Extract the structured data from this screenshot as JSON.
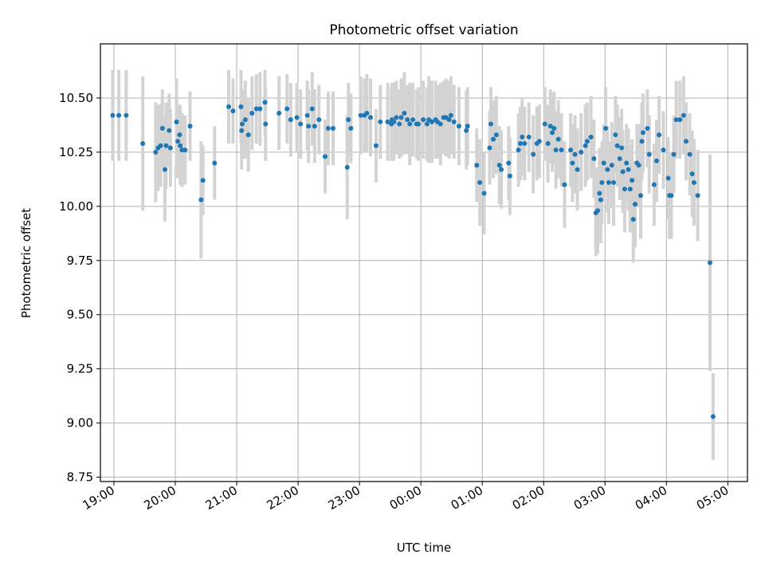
{
  "chart_data": {
    "type": "scatter",
    "title": "Photometric offset variation",
    "xlabel": "UTC time",
    "ylabel": "Photometric offset",
    "xlim": [
      -0.22,
      10.32
    ],
    "ylim": [
      8.73,
      10.75
    ],
    "grid": true,
    "x_unit": "hours since 19:00 UTC",
    "x_ticks": [
      {
        "value": 0,
        "label": "19:00"
      },
      {
        "value": 1,
        "label": "20:00"
      },
      {
        "value": 2,
        "label": "21:00"
      },
      {
        "value": 3,
        "label": "22:00"
      },
      {
        "value": 4,
        "label": "23:00"
      },
      {
        "value": 5,
        "label": "00:00"
      },
      {
        "value": 6,
        "label": "01:00"
      },
      {
        "value": 7,
        "label": "02:00"
      },
      {
        "value": 8,
        "label": "03:00"
      },
      {
        "value": 9,
        "label": "04:00"
      },
      {
        "value": 10,
        "label": "05:00"
      }
    ],
    "y_ticks": [
      {
        "value": 8.75,
        "label": "8.75"
      },
      {
        "value": 9.0,
        "label": "9.00"
      },
      {
        "value": 9.25,
        "label": "9.25"
      },
      {
        "value": 9.5,
        "label": "9.50"
      },
      {
        "value": 9.75,
        "label": "9.75"
      },
      {
        "value": 10.0,
        "label": "10.00"
      },
      {
        "value": 10.25,
        "label": "10.25"
      },
      {
        "value": 10.5,
        "label": "10.50"
      }
    ],
    "colors": {
      "point": "#1f77b4",
      "errorbar": "#d3d3d3",
      "grid": "#b0b0b0"
    },
    "series": [
      {
        "name": "offset",
        "points": [
          [
            -0.02,
            10.42,
            0.21
          ],
          [
            0.08,
            10.42,
            0.21
          ],
          [
            0.2,
            10.42,
            0.21
          ],
          [
            0.47,
            10.29,
            0.31
          ],
          [
            0.68,
            10.25,
            0.23
          ],
          [
            0.72,
            10.27,
            0.2
          ],
          [
            0.76,
            10.28,
            0.19
          ],
          [
            0.79,
            10.36,
            0.18
          ],
          [
            0.83,
            10.17,
            0.24
          ],
          [
            0.85,
            10.28,
            0.2
          ],
          [
            0.9,
            10.35,
            0.17
          ],
          [
            0.92,
            10.27,
            0.18
          ],
          [
            1.02,
            10.39,
            0.2
          ],
          [
            1.04,
            10.3,
            0.17
          ],
          [
            1.07,
            10.33,
            0.14
          ],
          [
            1.08,
            10.28,
            0.18
          ],
          [
            1.11,
            10.26,
            0.17
          ],
          [
            1.16,
            10.26,
            0.16
          ],
          [
            1.24,
            10.37,
            0.16
          ],
          [
            1.42,
            10.03,
            0.27
          ],
          [
            1.45,
            10.12,
            0.16
          ],
          [
            1.64,
            10.2,
            0.17
          ],
          [
            1.87,
            10.46,
            0.17
          ],
          [
            1.94,
            10.44,
            0.15
          ],
          [
            2.07,
            10.46,
            0.17
          ],
          [
            2.08,
            10.35,
            0.18
          ],
          [
            2.09,
            10.38,
            0.16
          ],
          [
            2.14,
            10.4,
            0.18
          ],
          [
            2.19,
            10.33,
            0.17
          ],
          [
            2.25,
            10.43,
            0.17
          ],
          [
            2.32,
            10.45,
            0.16
          ],
          [
            2.38,
            10.45,
            0.17
          ],
          [
            2.46,
            10.48,
            0.15
          ],
          [
            2.47,
            10.38,
            0.17
          ],
          [
            2.69,
            10.43,
            0.17
          ],
          [
            2.82,
            10.45,
            0.16
          ],
          [
            2.88,
            10.4,
            0.17
          ],
          [
            2.98,
            10.41,
            0.16
          ],
          [
            3.04,
            10.38,
            0.16
          ],
          [
            3.15,
            10.42,
            0.16
          ],
          [
            3.17,
            10.37,
            0.17
          ],
          [
            3.23,
            10.45,
            0.17
          ],
          [
            3.27,
            10.37,
            0.17
          ],
          [
            3.34,
            10.4,
            0.16
          ],
          [
            3.44,
            10.23,
            0.17
          ],
          [
            3.49,
            10.36,
            0.17
          ],
          [
            3.57,
            10.36,
            0.17
          ],
          [
            3.8,
            10.18,
            0.24
          ],
          [
            3.82,
            10.4,
            0.17
          ],
          [
            3.86,
            10.36,
            0.16
          ],
          [
            4.02,
            10.42,
            0.18
          ],
          [
            4.08,
            10.42,
            0.17
          ],
          [
            4.12,
            10.43,
            0.18
          ],
          [
            4.18,
            10.41,
            0.18
          ],
          [
            4.27,
            10.28,
            0.17
          ],
          [
            4.34,
            10.39,
            0.17
          ],
          [
            4.46,
            10.39,
            0.18
          ],
          [
            4.52,
            10.38,
            0.17
          ],
          [
            4.53,
            10.4,
            0.17
          ],
          [
            4.56,
            10.39,
            0.18
          ],
          [
            4.6,
            10.41,
            0.17
          ],
          [
            4.65,
            10.38,
            0.16
          ],
          [
            4.68,
            10.41,
            0.18
          ],
          [
            4.73,
            10.43,
            0.19
          ],
          [
            4.78,
            10.4,
            0.16
          ],
          [
            4.82,
            10.38,
            0.19
          ],
          [
            4.87,
            10.4,
            0.17
          ],
          [
            4.93,
            10.38,
            0.16
          ],
          [
            4.96,
            10.38,
            0.17
          ],
          [
            5.04,
            10.4,
            0.18
          ],
          [
            5.1,
            10.38,
            0.17
          ],
          [
            5.13,
            10.4,
            0.2
          ],
          [
            5.18,
            10.39,
            0.19
          ],
          [
            5.24,
            10.4,
            0.18
          ],
          [
            5.27,
            10.39,
            0.17
          ],
          [
            5.32,
            10.38,
            0.19
          ],
          [
            5.37,
            10.41,
            0.17
          ],
          [
            5.41,
            10.41,
            0.18
          ],
          [
            5.46,
            10.4,
            0.18
          ],
          [
            5.49,
            10.42,
            0.18
          ],
          [
            5.54,
            10.39,
            0.17
          ],
          [
            5.62,
            10.37,
            0.18
          ],
          [
            5.74,
            10.35,
            0.18
          ],
          [
            5.76,
            10.37,
            0.18
          ],
          [
            5.91,
            10.19,
            0.17
          ],
          [
            5.96,
            10.11,
            0.2
          ],
          [
            6.03,
            10.06,
            0.19
          ],
          [
            6.12,
            10.27,
            0.17
          ],
          [
            6.14,
            10.38,
            0.17
          ],
          [
            6.18,
            10.31,
            0.18
          ],
          [
            6.23,
            10.33,
            0.18
          ],
          [
            6.28,
            10.19,
            0.18
          ],
          [
            6.31,
            10.17,
            0.18
          ],
          [
            6.43,
            10.2,
            0.17
          ],
          [
            6.45,
            10.14,
            0.18
          ],
          [
            6.59,
            10.26,
            0.17
          ],
          [
            6.62,
            10.29,
            0.17
          ],
          [
            6.65,
            10.32,
            0.18
          ],
          [
            6.69,
            10.29,
            0.17
          ],
          [
            6.76,
            10.32,
            0.16
          ],
          [
            6.83,
            10.24,
            0.18
          ],
          [
            6.89,
            10.29,
            0.17
          ],
          [
            6.93,
            10.3,
            0.17
          ],
          [
            7.02,
            10.38,
            0.17
          ],
          [
            7.07,
            10.29,
            0.18
          ],
          [
            7.11,
            10.37,
            0.17
          ],
          [
            7.14,
            10.34,
            0.18
          ],
          [
            7.17,
            10.36,
            0.17
          ],
          [
            7.2,
            10.26,
            0.18
          ],
          [
            7.24,
            10.31,
            0.18
          ],
          [
            7.29,
            10.26,
            0.17
          ],
          [
            7.34,
            10.1,
            0.2
          ],
          [
            7.44,
            10.26,
            0.17
          ],
          [
            7.47,
            10.2,
            0.18
          ],
          [
            7.51,
            10.24,
            0.18
          ],
          [
            7.55,
            10.17,
            0.19
          ],
          [
            7.61,
            10.25,
            0.18
          ],
          [
            7.68,
            10.28,
            0.19
          ],
          [
            7.71,
            10.3,
            0.18
          ],
          [
            7.77,
            10.32,
            0.19
          ],
          [
            7.82,
            10.22,
            0.18
          ],
          [
            7.85,
            9.97,
            0.2
          ],
          [
            7.88,
            9.98,
            0.2
          ],
          [
            7.91,
            10.06,
            0.21
          ],
          [
            7.93,
            10.03,
            0.2
          ],
          [
            7.95,
            10.11,
            0.19
          ],
          [
            7.98,
            10.2,
            0.18
          ],
          [
            8.01,
            10.36,
            0.19
          ],
          [
            8.04,
            10.17,
            0.2
          ],
          [
            8.06,
            10.11,
            0.19
          ],
          [
            8.11,
            10.19,
            0.2
          ],
          [
            8.14,
            10.11,
            0.2
          ],
          [
            8.17,
            10.33,
            0.18
          ],
          [
            8.2,
            10.28,
            0.19
          ],
          [
            8.24,
            10.22,
            0.19
          ],
          [
            8.27,
            10.27,
            0.18
          ],
          [
            8.29,
            10.16,
            0.19
          ],
          [
            8.32,
            10.08,
            0.2
          ],
          [
            8.35,
            10.2,
            0.18
          ],
          [
            8.38,
            10.17,
            0.19
          ],
          [
            8.41,
            10.08,
            0.2
          ],
          [
            8.44,
            10.12,
            0.19
          ],
          [
            8.46,
            9.94,
            0.2
          ],
          [
            8.49,
            10.01,
            0.2
          ],
          [
            8.52,
            10.2,
            0.18
          ],
          [
            8.55,
            10.19,
            0.19
          ],
          [
            8.58,
            10.05,
            0.2
          ],
          [
            8.6,
            10.3,
            0.18
          ],
          [
            8.62,
            10.34,
            0.18
          ],
          [
            8.69,
            10.36,
            0.18
          ],
          [
            8.72,
            10.24,
            0.18
          ],
          [
            8.8,
            10.1,
            0.19
          ],
          [
            8.84,
            10.21,
            0.19
          ],
          [
            8.88,
            10.33,
            0.18
          ],
          [
            8.95,
            10.26,
            0.18
          ],
          [
            9.03,
            10.13,
            0.19
          ],
          [
            9.05,
            10.05,
            0.2
          ],
          [
            9.08,
            10.05,
            0.2
          ],
          [
            9.12,
            10.24,
            0.18
          ],
          [
            9.16,
            10.4,
            0.18
          ],
          [
            9.22,
            10.4,
            0.18
          ],
          [
            9.28,
            10.42,
            0.18
          ],
          [
            9.32,
            10.3,
            0.18
          ],
          [
            9.38,
            10.24,
            0.19
          ],
          [
            9.42,
            10.15,
            0.2
          ],
          [
            9.45,
            10.11,
            0.2
          ],
          [
            9.51,
            10.05,
            0.21
          ],
          [
            9.71,
            9.74,
            0.5
          ],
          [
            9.76,
            9.03,
            0.2
          ]
        ]
      }
    ]
  }
}
